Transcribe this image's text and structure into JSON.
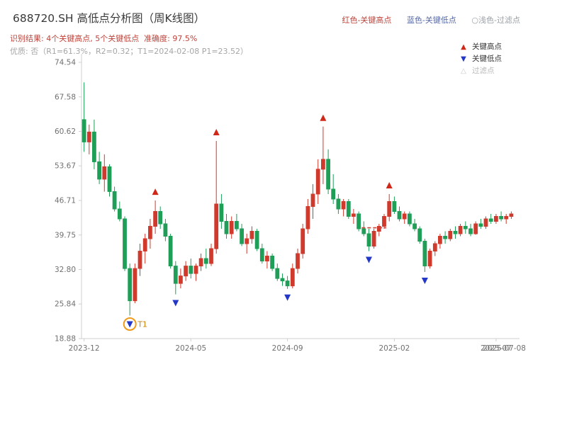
{
  "header": {
    "title": "688720.SH 高低点分析图（周K线图）",
    "top_legend": {
      "high": "红色-关键高点",
      "high_color": "#c0433b",
      "low": "蓝色-关键低点",
      "low_color": "#5668a8",
      "filtered": "○浅色-过滤点",
      "filtered_color": "#9aa0a6"
    },
    "result_line": "识别结果: 4个关键高点, 5个关键低点  准确度: 97.5%",
    "result_color": "#c0433b",
    "quality_line": "优质: 否（R1=61.3%，R2=0.32；T1=2024-02-08 P1=23.52）",
    "quality_color": "#a6a6a6"
  },
  "legend_box": {
    "items": [
      {
        "symbol": "▲",
        "color": "#d02818",
        "label": "关键高点",
        "label_color": "#333333"
      },
      {
        "symbol": "▼",
        "color": "#2438c8",
        "label": "关键低点",
        "label_color": "#333333"
      },
      {
        "symbol": "△",
        "color": "#c9c9c9",
        "label": "过滤点",
        "label_color": "#b9b9b9"
      }
    ]
  },
  "chart_data": {
    "type": "candlestick",
    "title": "688720.SH 高低点分析图（周K线图）",
    "ylim": [
      18.88,
      74.54
    ],
    "y_ticks": [
      74.54,
      67.58,
      60.62,
      53.67,
      46.71,
      39.75,
      32.8,
      25.84,
      18.88
    ],
    "x_ticks": [
      {
        "index": 0,
        "label": "2023-12"
      },
      {
        "index": 21,
        "label": "2024-05"
      },
      {
        "index": 40,
        "label": "2024-09"
      },
      {
        "index": 61,
        "label": "2025-02"
      },
      {
        "index": 81,
        "label": "2025-07"
      }
    ],
    "end_date_label": "2025-07-08",
    "up_color": "#d03a2d",
    "down_color": "#1e9e57",
    "high_marker_color": "#d02818",
    "low_marker_color": "#2438c8",
    "candles": [
      [
        63,
        70.5,
        56.5,
        58.5
      ],
      [
        58.5,
        62,
        56,
        60.5
      ],
      [
        60.5,
        63,
        53,
        54.5
      ],
      [
        54.5,
        56.5,
        50,
        51
      ],
      [
        51,
        56,
        48.5,
        53.5
      ],
      [
        53.5,
        54,
        47.5,
        48.5
      ],
      [
        48.5,
        49.5,
        44.5,
        45
      ],
      [
        45,
        46.5,
        42.5,
        43
      ],
      [
        43,
        43.5,
        32.5,
        33
      ],
      [
        33,
        34,
        23.52,
        26.5
      ],
      [
        26.5,
        34,
        26,
        33
      ],
      [
        33,
        38,
        31.5,
        36.5
      ],
      [
        36.5,
        40,
        34,
        39
      ],
      [
        39,
        43,
        37,
        41.5
      ],
      [
        41.5,
        46.7,
        40,
        44.5
      ],
      [
        44.5,
        45.5,
        41,
        42
      ],
      [
        42,
        43,
        38.5,
        39.5
      ],
      [
        39.5,
        40,
        33,
        33.5
      ],
      [
        33.5,
        34.5,
        27.8,
        30
      ],
      [
        30,
        33,
        29,
        31.5
      ],
      [
        31.5,
        34.5,
        30.5,
        33.5
      ],
      [
        33.5,
        35,
        31,
        32
      ],
      [
        32,
        34,
        30.5,
        33.5
      ],
      [
        33.5,
        36,
        32.5,
        35
      ],
      [
        35,
        37,
        33,
        34
      ],
      [
        34,
        38,
        33.5,
        37
      ],
      [
        37,
        58.7,
        36,
        46
      ],
      [
        46,
        48,
        41,
        42.5
      ],
      [
        42.5,
        44,
        39,
        40
      ],
      [
        40,
        43.5,
        39,
        42.5
      ],
      [
        42.5,
        44,
        40.5,
        41
      ],
      [
        41,
        42,
        37.5,
        38
      ],
      [
        38,
        40,
        36,
        39
      ],
      [
        39,
        41.5,
        38,
        40.5
      ],
      [
        40.5,
        41,
        36.5,
        37
      ],
      [
        37,
        38,
        34,
        34.5
      ],
      [
        34.5,
        36.5,
        33,
        35.5
      ],
      [
        35.5,
        36,
        32.5,
        33
      ],
      [
        33,
        34,
        30.5,
        31
      ],
      [
        31,
        32,
        29.5,
        30.5
      ],
      [
        30.5,
        31.5,
        28.9,
        29.5
      ],
      [
        29.5,
        34,
        29,
        33
      ],
      [
        33,
        37,
        32,
        36
      ],
      [
        36,
        42,
        35,
        41
      ],
      [
        41,
        47,
        40,
        45.5
      ],
      [
        45.5,
        50,
        43,
        48
      ],
      [
        48,
        55,
        46,
        53
      ],
      [
        53,
        61.6,
        50,
        55
      ],
      [
        55,
        57,
        48,
        49
      ],
      [
        49,
        52,
        46,
        47
      ],
      [
        47,
        48,
        44,
        45
      ],
      [
        45,
        47,
        43.5,
        46.5
      ],
      [
        46.5,
        47,
        43,
        43.5
      ],
      [
        43.5,
        45,
        42,
        44
      ],
      [
        44,
        44.5,
        40.5,
        41
      ],
      [
        41,
        42.5,
        39.5,
        40
      ],
      [
        40,
        41,
        36.5,
        37.5
      ],
      [
        37.5,
        41,
        37,
        40.5
      ],
      [
        40.5,
        42,
        39.5,
        41.5
      ],
      [
        41.5,
        44,
        41,
        43.5
      ],
      [
        43.5,
        48,
        42.5,
        46.5
      ],
      [
        46.5,
        47.5,
        44,
        44.5
      ],
      [
        44.5,
        45.5,
        42.5,
        43
      ],
      [
        43,
        44.5,
        42,
        44
      ],
      [
        44,
        44.5,
        41.5,
        42
      ],
      [
        42,
        43,
        40.5,
        41
      ],
      [
        41,
        41.5,
        38,
        38.5
      ],
      [
        38.5,
        39,
        32.3,
        33.5
      ],
      [
        33.5,
        37,
        33,
        36.5
      ],
      [
        36.5,
        38.5,
        35.5,
        38
      ],
      [
        38,
        40,
        37,
        39.5
      ],
      [
        39.5,
        40.5,
        38,
        39
      ],
      [
        39,
        41,
        38.5,
        40.5
      ],
      [
        40.5,
        41.5,
        39,
        40
      ],
      [
        40,
        42,
        39.5,
        41.5
      ],
      [
        41.5,
        42.5,
        40,
        41
      ],
      [
        41,
        42,
        39.5,
        40
      ],
      [
        40,
        42.5,
        39.8,
        42
      ],
      [
        42,
        43,
        41,
        41.5
      ],
      [
        41.5,
        43.5,
        41,
        43
      ],
      [
        43,
        44,
        42,
        42.5
      ],
      [
        42.5,
        44,
        42,
        43.5
      ],
      [
        43.5,
        44.5,
        42.5,
        43
      ],
      [
        43,
        44,
        42,
        43.5
      ],
      [
        43.5,
        44.5,
        43,
        44
      ]
    ],
    "key_highs": [
      {
        "index": 14,
        "price": 46.7
      },
      {
        "index": 26,
        "price": 58.7
      },
      {
        "index": 47,
        "price": 61.6
      },
      {
        "index": 60,
        "price": 48.0
      }
    ],
    "key_lows": [
      {
        "index": 9,
        "price": 23.52
      },
      {
        "index": 18,
        "price": 27.8
      },
      {
        "index": 40,
        "price": 28.9
      },
      {
        "index": 56,
        "price": 36.5
      },
      {
        "index": 67,
        "price": 32.3
      }
    ],
    "t1_marker": {
      "index": 9,
      "price": 23.52,
      "label": "T1",
      "circle_color": "#f09a1a",
      "text_color": "#c9820c"
    },
    "dashed_line": {
      "from_index": 55,
      "to_index": 59,
      "price": 41.2,
      "color": "#cc453b"
    }
  }
}
